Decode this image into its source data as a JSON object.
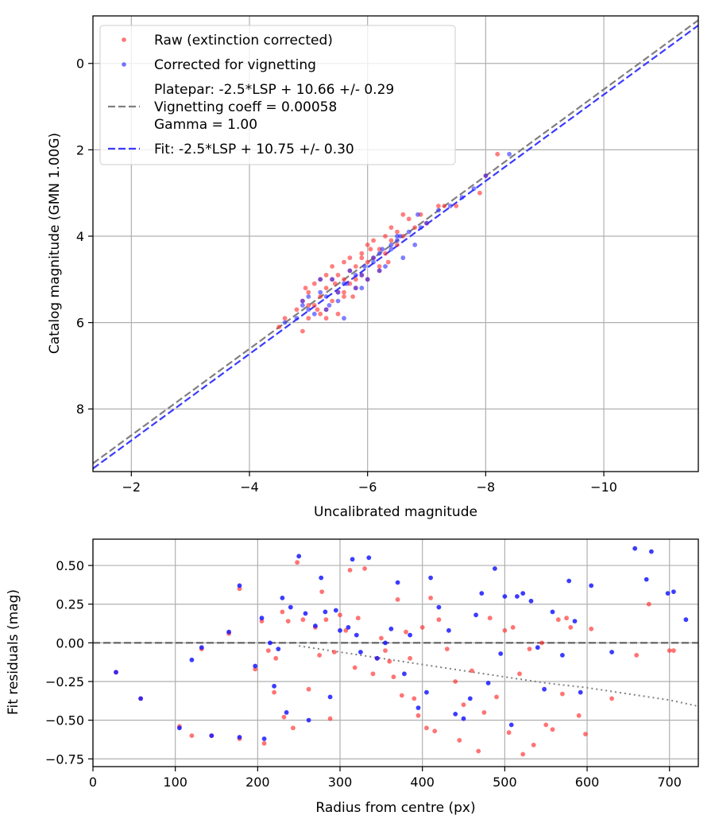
{
  "chart_data": [
    {
      "type": "scatter",
      "xlabel": "Uncalibrated magnitude",
      "ylabel": "Catalog magnitude (GMN 1.00G)",
      "xlim": [
        -1.35,
        -11.6
      ],
      "ylim": [
        9.45,
        -1.1
      ],
      "xticks": [
        -2,
        -4,
        -6,
        -8,
        -10
      ],
      "xtick_labels": [
        "−2",
        "−4",
        "−6",
        "−8",
        "−10"
      ],
      "yticks": [
        0,
        2,
        4,
        6,
        8
      ],
      "ytick_labels": [
        "0",
        "2",
        "4",
        "6",
        "8"
      ],
      "grid": true,
      "legend_position": "top-left",
      "legend": [
        {
          "label": "Raw (extinction corrected)",
          "kind": "red-dot"
        },
        {
          "label": "Corrected for vignetting",
          "kind": "blue-dot"
        },
        {
          "label": [
            "Platepar: -2.5*LSP + 10.66 +/- 0.29",
            "Vignetting coeff = 0.00058",
            "Gamma = 1.00"
          ],
          "kind": "gray-dash"
        },
        {
          "label": "Fit: -2.5*LSP + 10.75 +/- 0.30",
          "kind": "blue-dash"
        }
      ],
      "lines": [
        {
          "name": "Platepar",
          "x": [
            -1.35,
            -11.6
          ],
          "y": [
            9.26,
            -1.0
          ],
          "color": "#7f7f7f"
        },
        {
          "name": "Fit",
          "x": [
            -1.35,
            -11.6
          ],
          "y": [
            9.38,
            -0.88
          ],
          "color": "#3a3aff"
        }
      ],
      "series": [
        {
          "name": "Raw (extinction corrected)",
          "color": "#ff2a2a",
          "x": [
            -4.5,
            -4.6,
            -4.8,
            -4.9,
            -4.9,
            -5.0,
            -5.0,
            -5.1,
            -5.1,
            -5.2,
            -5.2,
            -5.2,
            -5.3,
            -5.3,
            -5.3,
            -5.4,
            -5.4,
            -5.4,
            -5.5,
            -5.5,
            -5.5,
            -5.6,
            -5.6,
            -5.6,
            -5.7,
            -5.7,
            -5.7,
            -5.8,
            -5.8,
            -5.8,
            -5.9,
            -5.9,
            -6.0,
            -6.0,
            -6.0,
            -6.1,
            -6.1,
            -6.2,
            -6.2,
            -6.3,
            -6.3,
            -6.4,
            -6.4,
            -6.5,
            -6.5,
            -6.6,
            -6.6,
            -6.7,
            -6.8,
            -6.9,
            -7.0,
            -7.2,
            -7.3,
            -7.5,
            -7.9,
            -8.0,
            -8.2,
            -5.0,
            -5.3,
            -5.6,
            -5.9,
            -6.2,
            -4.95,
            -5.15,
            -5.45,
            -5.75,
            -6.05,
            -6.35
          ],
          "y": [
            6.1,
            5.9,
            5.7,
            6.2,
            5.5,
            5.3,
            5.9,
            5.1,
            5.6,
            5.0,
            5.4,
            5.8,
            5.2,
            4.9,
            5.7,
            5.0,
            5.5,
            4.7,
            5.3,
            4.9,
            5.8,
            5.0,
            4.6,
            5.4,
            5.1,
            4.8,
            4.5,
            5.2,
            4.7,
            5.0,
            4.9,
            4.4,
            4.6,
            4.2,
            5.0,
            4.5,
            4.1,
            4.3,
            4.7,
            4.0,
            4.4,
            4.1,
            3.8,
            4.2,
            3.9,
            3.5,
            4.0,
            3.6,
            3.8,
            3.5,
            3.7,
            3.3,
            3.3,
            3.3,
            3.0,
            2.6,
            2.1,
            5.6,
            5.9,
            5.3,
            4.5,
            4.8,
            5.2,
            5.7,
            5.1,
            5.4,
            4.3,
            4.6
          ]
        },
        {
          "name": "Corrected for vignetting",
          "color": "#2a2aff",
          "x": [
            -4.6,
            -4.8,
            -4.9,
            -5.0,
            -5.1,
            -5.2,
            -5.3,
            -5.4,
            -5.5,
            -5.6,
            -5.7,
            -5.8,
            -5.9,
            -6.0,
            -6.1,
            -6.2,
            -6.3,
            -6.4,
            -6.5,
            -6.6,
            -6.7,
            -6.8,
            -6.9,
            -7.0,
            -7.2,
            -7.4,
            -7.6,
            -7.8,
            -8.0,
            -8.4,
            -5.0,
            -5.3,
            -5.6,
            -5.9,
            -6.2,
            -6.5,
            -4.9,
            -5.2,
            -5.5,
            -5.8,
            -6.1,
            -6.4,
            -5.35,
            -5.65,
            -5.95,
            -6.25,
            -6.55,
            -6.85
          ],
          "y": [
            6.0,
            5.9,
            5.6,
            5.4,
            5.8,
            5.3,
            5.7,
            5.0,
            5.5,
            5.1,
            4.8,
            5.2,
            4.9,
            5.0,
            4.6,
            4.4,
            4.7,
            4.3,
            4.1,
            4.5,
            3.9,
            4.2,
            3.8,
            3.7,
            3.4,
            3.3,
            3.1,
            2.9,
            2.6,
            2.1,
            5.7,
            5.4,
            5.9,
            5.2,
            4.8,
            4.0,
            5.5,
            5.0,
            5.3,
            4.9,
            4.5,
            4.2,
            5.6,
            5.1,
            4.7,
            4.3,
            4.0,
            3.5
          ]
        }
      ]
    },
    {
      "type": "scatter",
      "xlabel": "Radius from centre (px)",
      "ylabel": "Fit residuals (mag)",
      "xlim": [
        0,
        735
      ],
      "ylim": [
        -0.8,
        0.67
      ],
      "xticks": [
        0,
        100,
        200,
        300,
        400,
        500,
        600,
        700
      ],
      "xtick_labels": [
        "0",
        "100",
        "200",
        "300",
        "400",
        "500",
        "600",
        "700"
      ],
      "yticks": [
        0.5,
        0.25,
        0.0,
        -0.25,
        -0.5,
        -0.75
      ],
      "ytick_labels": [
        "0.50",
        "0.25",
        "0.00",
        "−0.25",
        "−0.50",
        "−0.75"
      ],
      "grid": true,
      "lines": [
        {
          "name": "zero",
          "x": [
            0,
            735
          ],
          "y": [
            0,
            0
          ],
          "color": "#555555",
          "style": "dashed"
        },
        {
          "name": "vignetting",
          "x": [
            250,
            300,
            350,
            400,
            450,
            500,
            550,
            600,
            650,
            700,
            735
          ],
          "y": [
            -0.02,
            -0.06,
            -0.1,
            -0.14,
            -0.18,
            -0.22,
            -0.26,
            -0.29,
            -0.33,
            -0.37,
            -0.41
          ],
          "color": "#808080",
          "style": "dotted"
        }
      ],
      "series": [
        {
          "name": "Raw (extinction corrected)",
          "color": "#ff2a2a",
          "x": [
            28,
            58,
            105,
            120,
            132,
            144,
            165,
            178,
            178,
            197,
            205,
            208,
            213,
            220,
            222,
            230,
            232,
            237,
            243,
            248,
            255,
            262,
            270,
            275,
            278,
            283,
            288,
            293,
            300,
            307,
            312,
            318,
            322,
            330,
            340,
            345,
            350,
            355,
            360,
            365,
            370,
            375,
            380,
            385,
            390,
            395,
            400,
            405,
            410,
            415,
            420,
            430,
            440,
            445,
            450,
            460,
            468,
            475,
            482,
            490,
            500,
            505,
            510,
            518,
            522,
            530,
            535,
            545,
            550,
            558,
            565,
            570,
            575,
            580,
            590,
            598,
            605,
            630,
            660,
            675,
            700,
            705
          ],
          "y": [
            -0.19,
            -0.36,
            -0.54,
            -0.6,
            -0.04,
            -0.6,
            0.06,
            0.35,
            -0.62,
            -0.17,
            0.14,
            -0.65,
            -0.05,
            -0.32,
            -0.1,
            0.2,
            -0.48,
            0.14,
            -0.55,
            0.52,
            0.15,
            -0.3,
            0.1,
            -0.08,
            0.33,
            0.15,
            -0.49,
            -0.06,
            0.18,
            0.08,
            0.47,
            -0.16,
            0.16,
            0.48,
            -0.2,
            -0.1,
            0.03,
            -0.05,
            -0.12,
            -0.22,
            0.28,
            -0.34,
            0.07,
            -0.1,
            -0.36,
            -0.47,
            0.1,
            -0.55,
            0.29,
            -0.57,
            0.15,
            -0.04,
            -0.25,
            -0.63,
            -0.4,
            -0.18,
            -0.7,
            -0.45,
            0.16,
            -0.35,
            0.08,
            -0.58,
            0.1,
            -0.2,
            -0.72,
            -0.04,
            -0.66,
            0.0,
            -0.53,
            -0.56,
            0.15,
            -0.33,
            0.16,
            0.1,
            -0.47,
            -0.59,
            0.09,
            -0.36,
            -0.08,
            0.25,
            -0.05,
            -0.05
          ]
        },
        {
          "name": "Corrected for vignetting",
          "color": "#1a1aff",
          "x": [
            28,
            58,
            105,
            120,
            132,
            144,
            165,
            178,
            178,
            197,
            205,
            208,
            215,
            220,
            225,
            230,
            235,
            240,
            250,
            258,
            262,
            270,
            277,
            282,
            288,
            295,
            300,
            310,
            315,
            320,
            325,
            335,
            345,
            355,
            362,
            370,
            378,
            385,
            395,
            405,
            410,
            420,
            432,
            440,
            450,
            458,
            465,
            472,
            480,
            488,
            495,
            500,
            508,
            515,
            522,
            532,
            540,
            548,
            558,
            570,
            578,
            585,
            592,
            605,
            630,
            658,
            672,
            678,
            698,
            705,
            720
          ],
          "y": [
            -0.19,
            -0.36,
            -0.55,
            -0.11,
            -0.03,
            -0.6,
            0.07,
            0.37,
            -0.61,
            -0.15,
            0.16,
            -0.62,
            0.0,
            -0.28,
            -0.04,
            0.29,
            -0.45,
            0.23,
            0.56,
            0.19,
            -0.5,
            0.11,
            0.42,
            0.2,
            -0.35,
            0.21,
            0.08,
            0.1,
            0.54,
            0.05,
            -0.06,
            0.55,
            -0.1,
            0.0,
            0.09,
            0.39,
            -0.2,
            0.05,
            -0.42,
            -0.32,
            0.42,
            0.23,
            0.08,
            -0.46,
            -0.49,
            -0.36,
            0.18,
            0.32,
            -0.26,
            0.48,
            -0.07,
            0.3,
            -0.53,
            0.3,
            0.32,
            0.27,
            -0.03,
            -0.3,
            0.2,
            -0.08,
            0.4,
            0.14,
            -0.32,
            0.37,
            -0.06,
            0.61,
            0.41,
            0.59,
            0.32,
            0.33,
            0.15
          ]
        }
      ]
    }
  ]
}
